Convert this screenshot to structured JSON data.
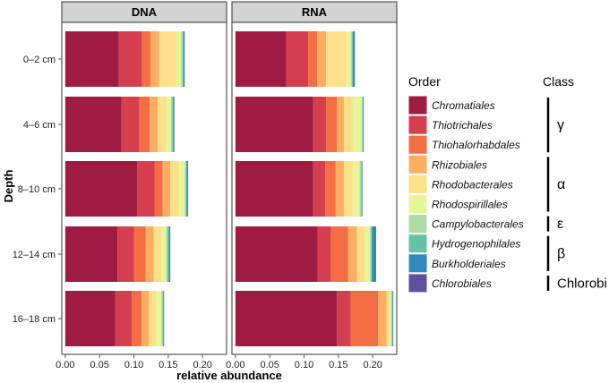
{
  "chart_data": {
    "type": "bar",
    "orientation": "horizontal",
    "stacked": true,
    "facets": [
      "DNA",
      "RNA"
    ],
    "categories": [
      "0–2 cm",
      "4–6 cm",
      "8–10 cm",
      "12–14 cm",
      "16–18 cm"
    ],
    "ylabel": "Depth",
    "xlabel": "relative abundance",
    "xlim": [
      -0.005,
      0.235
    ],
    "xticks": [
      0.0,
      0.05,
      0.1,
      0.15,
      0.2
    ],
    "xtick_labels": [
      "0.00",
      "0.05",
      "0.10",
      "0.15",
      "0.20"
    ],
    "order_legend_title": "Order",
    "class_legend_title": "Class",
    "orders": [
      {
        "name": "Chromatiales",
        "color": "#9e1b42"
      },
      {
        "name": "Thiotrichales",
        "color": "#d53e4f"
      },
      {
        "name": "Thiohalorhabdales",
        "color": "#f46d43"
      },
      {
        "name": "Rhizobiales",
        "color": "#fdae61"
      },
      {
        "name": "Rhodobacterales",
        "color": "#fee08b"
      },
      {
        "name": "Rhodospirillales",
        "color": "#e6f598"
      },
      {
        "name": "Campylobacterales",
        "color": "#abdda4"
      },
      {
        "name": "Hydrogenophilales",
        "color": "#66c2a5"
      },
      {
        "name": "Burkholderiales",
        "color": "#3288bd"
      },
      {
        "name": "Chlorobiales",
        "color": "#5e4fa2"
      }
    ],
    "classes": [
      {
        "name": "γ",
        "orders": [
          "Chromatiales",
          "Thiotrichales",
          "Thiohalorhabdales"
        ]
      },
      {
        "name": "α",
        "orders": [
          "Rhizobiales",
          "Rhodobacterales",
          "Rhodospirillales"
        ]
      },
      {
        "name": "ε",
        "orders": [
          "Campylobacterales"
        ]
      },
      {
        "name": "β",
        "orders": [
          "Hydrogenophilales",
          "Burkholderiales"
        ]
      },
      {
        "name": "Chlorobi",
        "orders": [
          "Chlorobiales"
        ]
      }
    ],
    "series": {
      "DNA": [
        [
          0.078,
          0.034,
          0.012,
          0.013,
          0.025,
          0.007,
          0.002,
          0.001,
          0.002,
          0.0
        ],
        [
          0.082,
          0.026,
          0.015,
          0.012,
          0.012,
          0.007,
          0.002,
          0.001,
          0.002,
          0.0
        ],
        [
          0.105,
          0.025,
          0.012,
          0.011,
          0.013,
          0.008,
          0.002,
          0.001,
          0.002,
          0.0
        ],
        [
          0.076,
          0.024,
          0.017,
          0.012,
          0.011,
          0.007,
          0.002,
          0.002,
          0.002,
          0.0
        ],
        [
          0.073,
          0.024,
          0.014,
          0.011,
          0.01,
          0.008,
          0.002,
          0.001,
          0.001,
          0.0
        ]
      ],
      "RNA": [
        [
          0.074,
          0.032,
          0.013,
          0.013,
          0.03,
          0.006,
          0.002,
          0.001,
          0.003,
          0.0
        ],
        [
          0.113,
          0.019,
          0.016,
          0.01,
          0.013,
          0.013,
          0.001,
          0.001,
          0.001,
          0.0
        ],
        [
          0.113,
          0.018,
          0.015,
          0.012,
          0.014,
          0.009,
          0.002,
          0.001,
          0.001,
          0.0
        ],
        [
          0.12,
          0.019,
          0.025,
          0.013,
          0.012,
          0.007,
          0.002,
          0.001,
          0.006,
          0.0
        ],
        [
          0.148,
          0.02,
          0.04,
          0.012,
          0.005,
          0.002,
          0.001,
          0.001,
          0.001,
          0.0
        ]
      ]
    }
  }
}
